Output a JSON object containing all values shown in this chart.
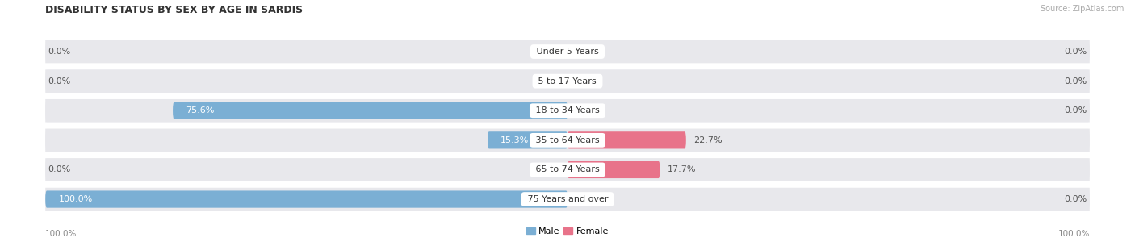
{
  "title": "DISABILITY STATUS BY SEX BY AGE IN SARDIS",
  "source": "Source: ZipAtlas.com",
  "categories": [
    "Under 5 Years",
    "5 to 17 Years",
    "18 to 34 Years",
    "35 to 64 Years",
    "65 to 74 Years",
    "75 Years and over"
  ],
  "male_values": [
    0.0,
    0.0,
    75.6,
    15.3,
    0.0,
    100.0
  ],
  "female_values": [
    0.0,
    0.0,
    0.0,
    22.7,
    17.7,
    0.0
  ],
  "male_color": "#7bafd4",
  "female_color": "#e8738a",
  "row_bg_color": "#e8e8ec",
  "max_value": 100.0,
  "figsize": [
    14.06,
    3.05
  ],
  "dpi": 100,
  "title_fontsize": 9,
  "label_fontsize": 8,
  "cat_fontsize": 8
}
